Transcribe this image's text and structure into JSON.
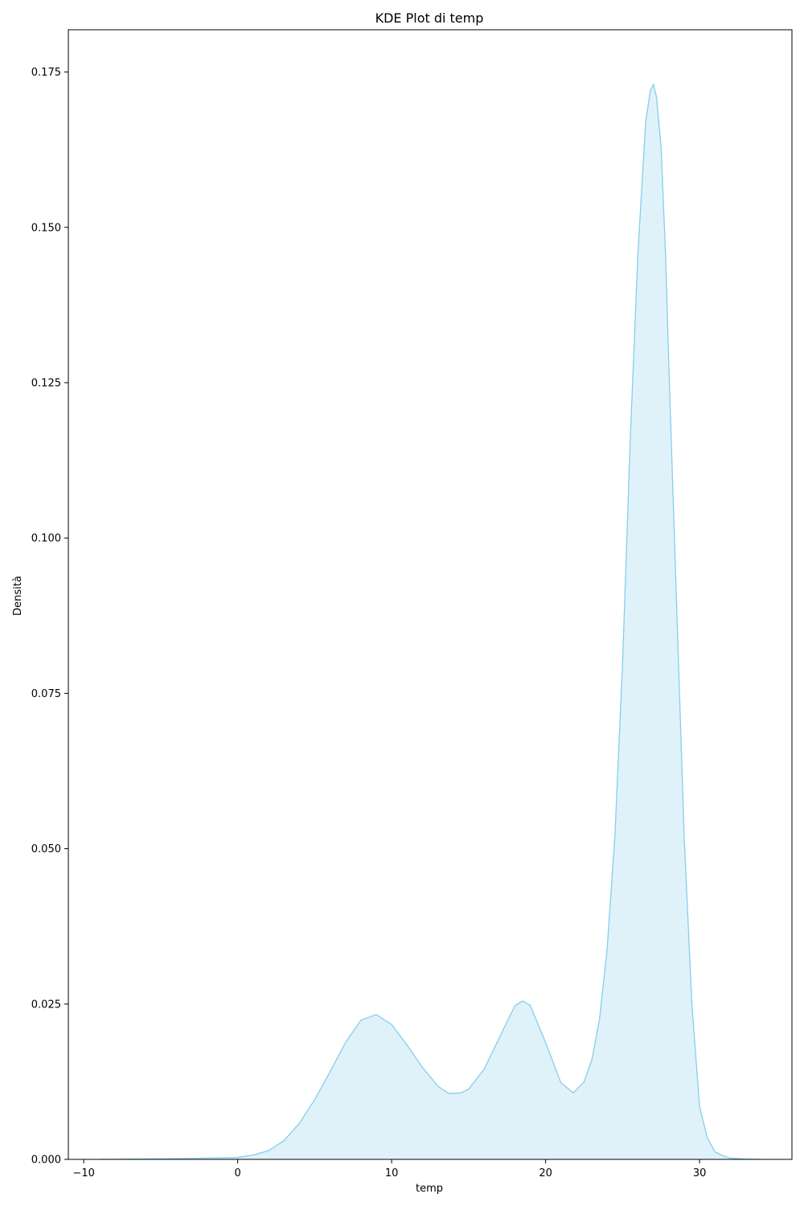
{
  "chart_data": {
    "type": "area",
    "title": "KDE Plot di temp",
    "xlabel": "temp",
    "ylabel": "Densità",
    "xlim": [
      -10,
      35
    ],
    "ylim": [
      0,
      0.18
    ],
    "xticks": [
      -10,
      0,
      10,
      20,
      30
    ],
    "xtick_labels": [
      "−10",
      "0",
      "10",
      "20",
      "30"
    ],
    "yticks": [
      0,
      0.025,
      0.05,
      0.075,
      0.1,
      0.125,
      0.15,
      0.175
    ],
    "ytick_labels": [
      "0.000",
      "0.025",
      "0.050",
      "0.075",
      "0.100",
      "0.125",
      "0.150",
      "0.175"
    ],
    "grid": false,
    "colors": {
      "line": "#87ceeb",
      "fill": "#87ceeb",
      "fill_opacity": 0.27
    },
    "series": [
      {
        "x": [
          -9,
          -5,
          -2,
          0,
          1,
          2,
          3,
          4,
          5,
          6,
          7,
          8,
          9,
          10,
          11,
          12,
          13,
          13.7,
          14.5,
          15,
          16,
          17,
          18,
          18.5,
          19,
          20,
          21,
          21.8,
          22.5,
          23,
          23.5,
          24,
          24.5,
          25,
          25.5,
          26,
          26.5,
          26.8,
          27,
          27.2,
          27.5,
          27.8,
          28,
          28.5,
          29,
          29.5,
          30,
          30.5,
          31,
          31.5,
          32,
          33,
          34
        ],
        "y": [
          0,
          0.0001,
          0.0002,
          0.0003,
          0.0007,
          0.0014,
          0.003,
          0.0058,
          0.0096,
          0.0141,
          0.0188,
          0.0224,
          0.0233,
          0.0217,
          0.0184,
          0.0148,
          0.0118,
          0.0106,
          0.0107,
          0.0113,
          0.0145,
          0.0196,
          0.0247,
          0.0255,
          0.0248,
          0.0188,
          0.0123,
          0.0107,
          0.0125,
          0.016,
          0.0225,
          0.034,
          0.052,
          0.08,
          0.116,
          0.146,
          0.167,
          0.172,
          0.173,
          0.171,
          0.163,
          0.145,
          0.128,
          0.09,
          0.052,
          0.025,
          0.0085,
          0.0035,
          0.0012,
          0.0006,
          0.0002,
          5e-05,
          0
        ]
      }
    ]
  }
}
